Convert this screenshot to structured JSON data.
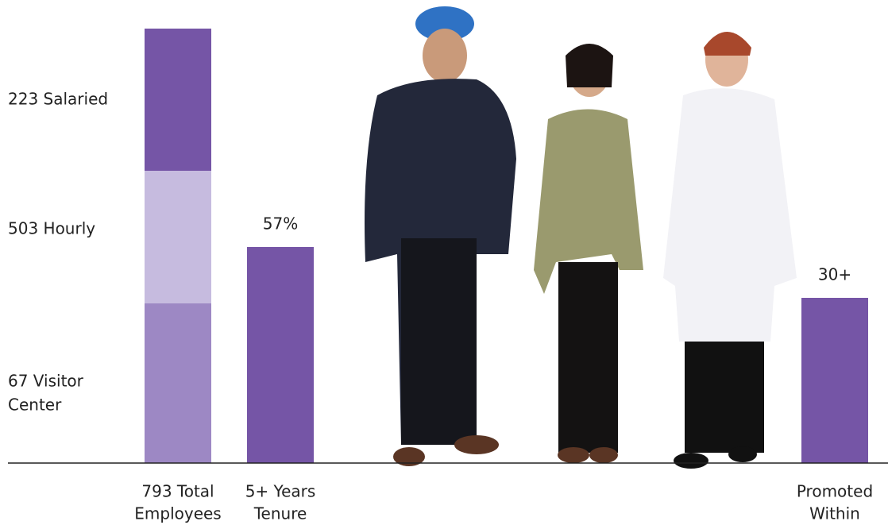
{
  "segment_labels": [
    [
      "223 Salaried"
    ],
    [
      "503 Hourly"
    ],
    [
      "67 Visitor",
      "Center"
    ]
  ],
  "bars": [
    {
      "value_label": null,
      "caption": [
        "793 Total",
        "Employees"
      ]
    },
    {
      "value_label": "57%",
      "caption": [
        "5+ Years",
        "Tenure"
      ]
    },
    {
      "value_label": "30+",
      "caption": [
        "Promoted",
        "Within"
      ]
    }
  ]
}
